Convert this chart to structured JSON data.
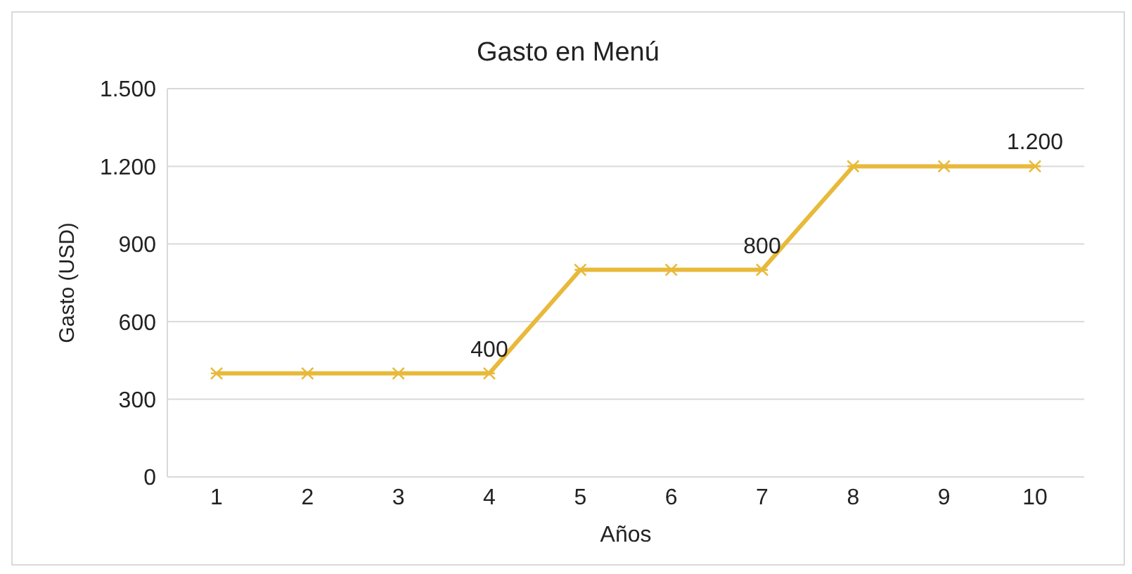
{
  "chart_data": {
    "type": "line",
    "title": "Gasto en Menú",
    "xlabel": "Años",
    "ylabel": "Gasto (USD)",
    "categories": [
      "1",
      "2",
      "3",
      "4",
      "5",
      "6",
      "7",
      "8",
      "9",
      "10"
    ],
    "series": [
      {
        "color": "#e8b93a",
        "values": [
          400,
          400,
          400,
          400,
          800,
          800,
          800,
          1200,
          1200,
          1200
        ],
        "value_labels": [
          null,
          null,
          null,
          "400",
          null,
          null,
          "800",
          null,
          null,
          "1.200"
        ]
      }
    ],
    "ylim": [
      0,
      1500
    ],
    "yticks": [
      0,
      300,
      600,
      900,
      {
        "value": 1200,
        "label": "1.200"
      },
      {
        "value": 1500,
        "label": "1.500"
      }
    ],
    "grid": "y",
    "marker": "cross",
    "line_style": "solid",
    "legend": false
  }
}
